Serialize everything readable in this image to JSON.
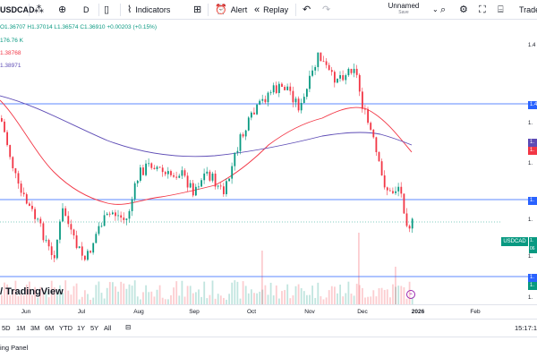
{
  "toolbar": {
    "symbol": "USDCAD",
    "interval": "D",
    "indicators_label": "Indicators",
    "alert_label": "Alert",
    "replay_label": "Replay",
    "layout_name": "Unnamed",
    "layout_status": "Save",
    "trade_label": "Trade"
  },
  "ohlc": {
    "open": "O1.36707",
    "high": "H1.37014",
    "low": "L1.36574",
    "close": "C1.36910",
    "change": "+0.00203 (+0.15%)"
  },
  "legend": {
    "volume": "176.76 K",
    "ma_red": "1.38768",
    "ma_purple": "1.38971"
  },
  "price_tag": {
    "symbol": "USDCAD",
    "value": "1.",
    "countdown": "06"
  },
  "price_scale_labels": [
    "1.4",
    "1.4",
    "1.",
    "1.",
    "1.",
    "1.",
    "1.",
    "1.",
    "1.",
    "1.",
    "1.",
    "1."
  ],
  "watermark": "TradingView",
  "time_axis": {
    "labels": [
      "Jun",
      "Jul",
      "Aug",
      "Sep",
      "Oct",
      "Nov",
      "Dec",
      "2026",
      "Feb"
    ],
    "bold_label": "2026"
  },
  "range_bar": {
    "ranges": [
      "5D",
      "1M",
      "3M",
      "6M",
      "YTD",
      "1Y",
      "5Y",
      "All"
    ],
    "clock": "15:17:1"
  },
  "bottom": {
    "trading_panel": "ing Panel"
  },
  "colors": {
    "up": "#089981",
    "down": "#f23645",
    "ma_red": "#f23645",
    "ma_purple": "#5d4bb5",
    "hline": "#2962ff"
  }
}
